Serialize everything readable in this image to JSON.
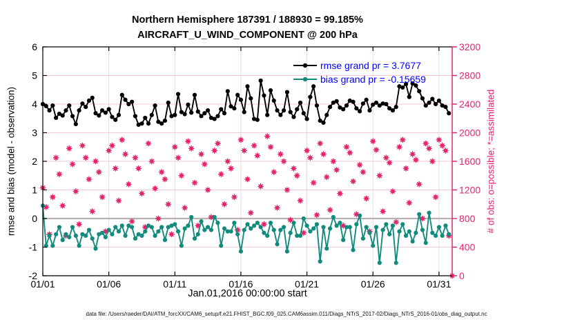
{
  "title": {
    "line1": "Northern Hemisphere 187391 / 188930 = 99.185%",
    "line2": "AIRCRAFT_U_WIND_COMPONENT @ 200 hPa"
  },
  "legend": {
    "rmse_label": "rmse grand pr = 3.7677",
    "bias_label": "bias grand pr = -0.15659",
    "text_color": "#0000FF"
  },
  "axes": {
    "left": {
      "label": "rmse and bias (model - observation)",
      "ticks": [
        -2,
        -1,
        0,
        1,
        2,
        3,
        4,
        5,
        6
      ],
      "lim": [
        -2,
        6
      ],
      "color": "#000000"
    },
    "right": {
      "label": "# of obs: o=possible; *=assimilated",
      "ticks": [
        0,
        400,
        800,
        1200,
        1600,
        2000,
        2400,
        2800,
        3200
      ],
      "lim": [
        0,
        3200
      ],
      "color": "#E3256B"
    },
    "x": {
      "label": "Jan.01,2016 00:00:00 start",
      "tick_days": [
        0,
        5,
        10,
        15,
        20,
        25,
        30
      ],
      "tick_labels": [
        "01/01",
        "01/06",
        "01/11",
        "01/16",
        "01/21",
        "01/26",
        "01/31"
      ],
      "lim_days": [
        0,
        31
      ]
    }
  },
  "footer": {
    "text": "data file: /Users/raeder/DAI/ATM_forcXX/CAM6_setup/f.e21.FHIST_BGC.f09_025.CAM6assim.011/Diags_NTrS_2017-02/Diags_NTrS_2016-01/obs_diag_output.nc"
  },
  "colors": {
    "rmse": "#000000",
    "bias": "#128A7C",
    "obs": "#E3256B",
    "grid_h": "#f5c9d6",
    "grid_v": "#e9d9dd",
    "zero_line": "#b9b1b1",
    "legend_text": "#0000FF"
  },
  "chart_data": {
    "type": "line",
    "title": "Northern Hemisphere 187391 / 188930 = 99.185% — AIRCRAFT_U_WIND_COMPONENT @ 200 hPa",
    "xlabel": "Jan.01,2016 00:00:00 start",
    "ylabel_left": "rmse and bias (model - observation)",
    "ylabel_right": "# of obs: o=possible; *=assimilated",
    "x_lim_days": [
      0,
      31
    ],
    "left_ylim": [
      -2,
      6
    ],
    "right_ylim": [
      0,
      3200
    ],
    "grid": true,
    "legend_position": "top-right-inside",
    "time_step_days": 0.25,
    "series": [
      {
        "name": "rmse",
        "legend": "rmse grand pr = 3.7677",
        "grand_value": 3.7677,
        "axis": "left",
        "color": "#000000",
        "marker": "filled-circle",
        "values": [
          4.0,
          3.93,
          3.78,
          3.95,
          3.52,
          3.66,
          3.6,
          3.78,
          3.95,
          3.58,
          3.3,
          3.78,
          4.02,
          3.9,
          4.12,
          4.22,
          3.68,
          3.6,
          3.78,
          3.7,
          3.82,
          3.55,
          3.45,
          3.62,
          4.32,
          4.15,
          4.0,
          4.08,
          3.58,
          3.28,
          3.32,
          3.52,
          3.32,
          3.62,
          3.95,
          3.38,
          3.32,
          3.42,
          4.05,
          3.58,
          3.62,
          4.35,
          3.72,
          3.65,
          3.98,
          3.7,
          4.32,
          3.74,
          3.58,
          3.68,
          3.78,
          3.52,
          3.48,
          3.58,
          3.82,
          3.68,
          4.45,
          3.92,
          3.85,
          4.32,
          4.15,
          3.72,
          4.62,
          4.2,
          3.48,
          3.45,
          4.82,
          4.3,
          3.62,
          4.48,
          4.12,
          3.78,
          3.62,
          3.78,
          4.42,
          3.72,
          3.55,
          3.82,
          4.05,
          3.68,
          3.48,
          4.25,
          4.62,
          3.95,
          3.42,
          3.35,
          3.62,
          3.9,
          4.05,
          4.1,
          3.88,
          3.82,
          3.95,
          4.12,
          4.08,
          3.85,
          3.75,
          4.02,
          4.15,
          3.78,
          3.98,
          4.05,
          3.95,
          4.02,
          4.0,
          3.85,
          3.78,
          3.9,
          4.62,
          4.58,
          4.7,
          4.25,
          4.72,
          4.65,
          4.45,
          4.2,
          3.95,
          4.05,
          4.18,
          4.0,
          4.12,
          3.95,
          3.9,
          3.68
        ]
      },
      {
        "name": "bias",
        "legend": "bias grand pr = -0.15659",
        "grand_value": -0.15659,
        "axis": "left",
        "color": "#128A7C",
        "marker": "filled-circle",
        "values": [
          0.45,
          -0.95,
          -0.6,
          -0.95,
          -0.55,
          -0.3,
          -0.75,
          -0.55,
          -0.65,
          -0.3,
          -0.6,
          -0.95,
          -0.55,
          -0.6,
          -0.4,
          -0.7,
          -1.05,
          -0.55,
          -0.5,
          -0.65,
          -0.4,
          -0.55,
          -0.3,
          -0.45,
          -0.25,
          -0.6,
          -0.25,
          -0.3,
          -0.7,
          -0.55,
          -0.6,
          -0.45,
          -0.25,
          -0.3,
          -0.6,
          -0.45,
          -0.3,
          -0.75,
          -0.3,
          -0.25,
          -0.2,
          -0.45,
          -0.95,
          -0.35,
          -0.25,
          0.05,
          -0.7,
          -0.55,
          -0.1,
          -0.4,
          -0.3,
          -0.4,
          0.05,
          -0.15,
          -0.95,
          -0.35,
          -0.45,
          -0.45,
          -0.15,
          -0.55,
          -1.15,
          -0.4,
          -0.2,
          -0.35,
          -0.25,
          -0.15,
          -0.3,
          -0.5,
          -0.6,
          -0.15,
          -0.4,
          -0.9,
          -0.4,
          -0.3,
          -1.15,
          -0.5,
          -0.15,
          -0.6,
          -0.6,
          0.0,
          -0.25,
          -0.45,
          -0.35,
          -0.2,
          -1.5,
          -0.3,
          -1.05,
          -0.35,
          0.05,
          -0.25,
          -0.15,
          -0.75,
          -0.3,
          -0.3,
          -1.1,
          -0.2,
          0.1,
          -0.7,
          -0.3,
          -0.5,
          -0.95,
          -0.3,
          -1.55,
          -0.4,
          -0.2,
          -0.55,
          -0.25,
          -1.55,
          -0.45,
          -0.2,
          -0.6,
          -0.45,
          -0.8,
          -0.5,
          0.15,
          -0.4,
          -0.85,
          0.2,
          -0.5,
          -0.6,
          -0.3,
          -0.6,
          -0.25,
          -0.55
        ]
      },
      {
        "name": "n_obs",
        "legend": null,
        "axis": "right",
        "color": "#E3256B",
        "marker": "circle-plus-asterisk",
        "note": "possible (o) and assimilated (*) overlap; assimilated = 99.185% of possible",
        "values": [
          1230,
          960,
          580,
          1100,
          1650,
          1420,
          980,
          560,
          1780,
          1560,
          1180,
          720,
          1820,
          1650,
          1350,
          900,
          1600,
          1450,
          1100,
          620,
          1750,
          1820,
          1500,
          1050,
          1900,
          1700,
          1280,
          760,
          1650,
          1500,
          1150,
          680,
          1850,
          1600,
          1220,
          800,
          1450,
          1350,
          1000,
          580,
          1800,
          1650,
          1400,
          950,
          1880,
          1780,
          1300,
          700,
          1700,
          1560,
          1200,
          820,
          1750,
          1850,
          1420,
          1000,
          1600,
          1500,
          1100,
          640,
          1900,
          1750,
          1350,
          880,
          1820,
          1680,
          1250,
          720,
          1950,
          1800,
          1450,
          950,
          1700,
          1600,
          1200,
          780,
          1500,
          1400,
          1050,
          600,
          1750,
          1650,
          1300,
          850,
          1850,
          1700,
          1380,
          920,
          1600,
          1480,
          1150,
          700,
          1800,
          1720,
          1320,
          860,
          1550,
          1450,
          1080,
          620,
          1880,
          1760,
          1400,
          900,
          1650,
          1580,
          1180,
          750,
          1800,
          1900,
          1500,
          1020,
          1700,
          1620,
          1280,
          800,
          1850,
          1780,
          1600,
          1100,
          1900,
          1820,
          1750,
          560,
          0
        ]
      }
    ]
  }
}
